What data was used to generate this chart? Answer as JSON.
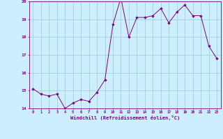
{
  "x": [
    0,
    1,
    2,
    3,
    4,
    5,
    6,
    7,
    8,
    9,
    10,
    11,
    12,
    13,
    14,
    15,
    16,
    17,
    18,
    19,
    20,
    21,
    22,
    23
  ],
  "y": [
    15.1,
    14.8,
    14.7,
    14.8,
    14.0,
    14.3,
    14.5,
    14.4,
    14.9,
    15.6,
    18.7,
    20.2,
    18.0,
    19.1,
    19.1,
    19.2,
    19.6,
    18.8,
    19.4,
    19.8,
    19.2,
    19.2,
    17.5,
    16.8
  ],
  "ylim": [
    14,
    20
  ],
  "yticks": [
    14,
    15,
    16,
    17,
    18,
    19,
    20
  ],
  "xticks": [
    0,
    1,
    2,
    3,
    4,
    5,
    6,
    7,
    8,
    9,
    10,
    11,
    12,
    13,
    14,
    15,
    16,
    17,
    18,
    19,
    20,
    21,
    22,
    23
  ],
  "line_color": "#800080",
  "marker": "D",
  "marker_size": 1.8,
  "marker_color": "#800080",
  "bg_color": "#cceeff",
  "grid_color": "#99cccc",
  "xlabel": "Windchill (Refroidissement éolien,°C)",
  "xlabel_color": "#800080",
  "tick_color": "#800080",
  "tick_label_color": "#800080",
  "spine_color": "#800080",
  "title": ""
}
